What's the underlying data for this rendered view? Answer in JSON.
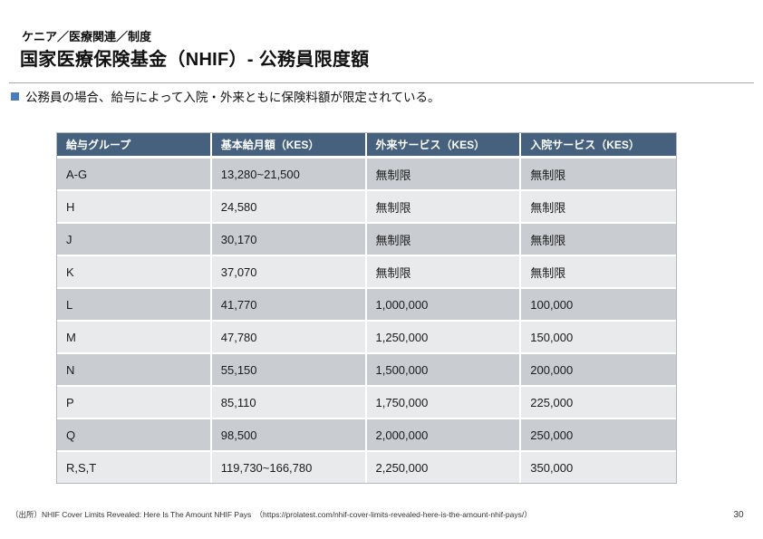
{
  "slide": {
    "eyebrow": "ケニア／医療関連／制度",
    "title": "国家医療保険基金（NHIF）- 公務員限度額",
    "bullet_text": "公務員の場合、給与によって入院・外来ともに保険料額が限定されている。",
    "source": "（出所）NHIF Cover Limits Revealed: Here Is The Amount NHIF Pays　（https://prolatest.com/nhif-cover-limits-revealed-here-is-the-amount-nhif-pays/）",
    "page_number": "30"
  },
  "table": {
    "headers": [
      "給与グループ",
      "基本給月額（KES）",
      "外来サービス（KES）",
      "入院サービス（KES）"
    ],
    "rows": [
      [
        "A-G",
        "13,280~21,500",
        "無制限",
        "無制限"
      ],
      [
        "H",
        "24,580",
        "無制限",
        "無制限"
      ],
      [
        "J",
        "30,170",
        "無制限",
        "無制限"
      ],
      [
        "K",
        "37,070",
        "無制限",
        "無制限"
      ],
      [
        "L",
        "41,770",
        "1,000,000",
        "100,000"
      ],
      [
        "M",
        "47,780",
        "1,250,000",
        "150,000"
      ],
      [
        "N",
        "55,150",
        "1,500,000",
        "200,000"
      ],
      [
        "P",
        "85,110",
        "1,750,000",
        "225,000"
      ],
      [
        "Q",
        "98,500",
        "2,000,000",
        "250,000"
      ],
      [
        "R,S,T",
        "119,730~166,780",
        "2,250,000",
        "350,000"
      ]
    ]
  },
  "colors": {
    "header_bg": "#45617D",
    "row_dark": "#C9CDD2",
    "row_light": "#E9EAEC",
    "bullet_blue": "#4A7EBB"
  }
}
